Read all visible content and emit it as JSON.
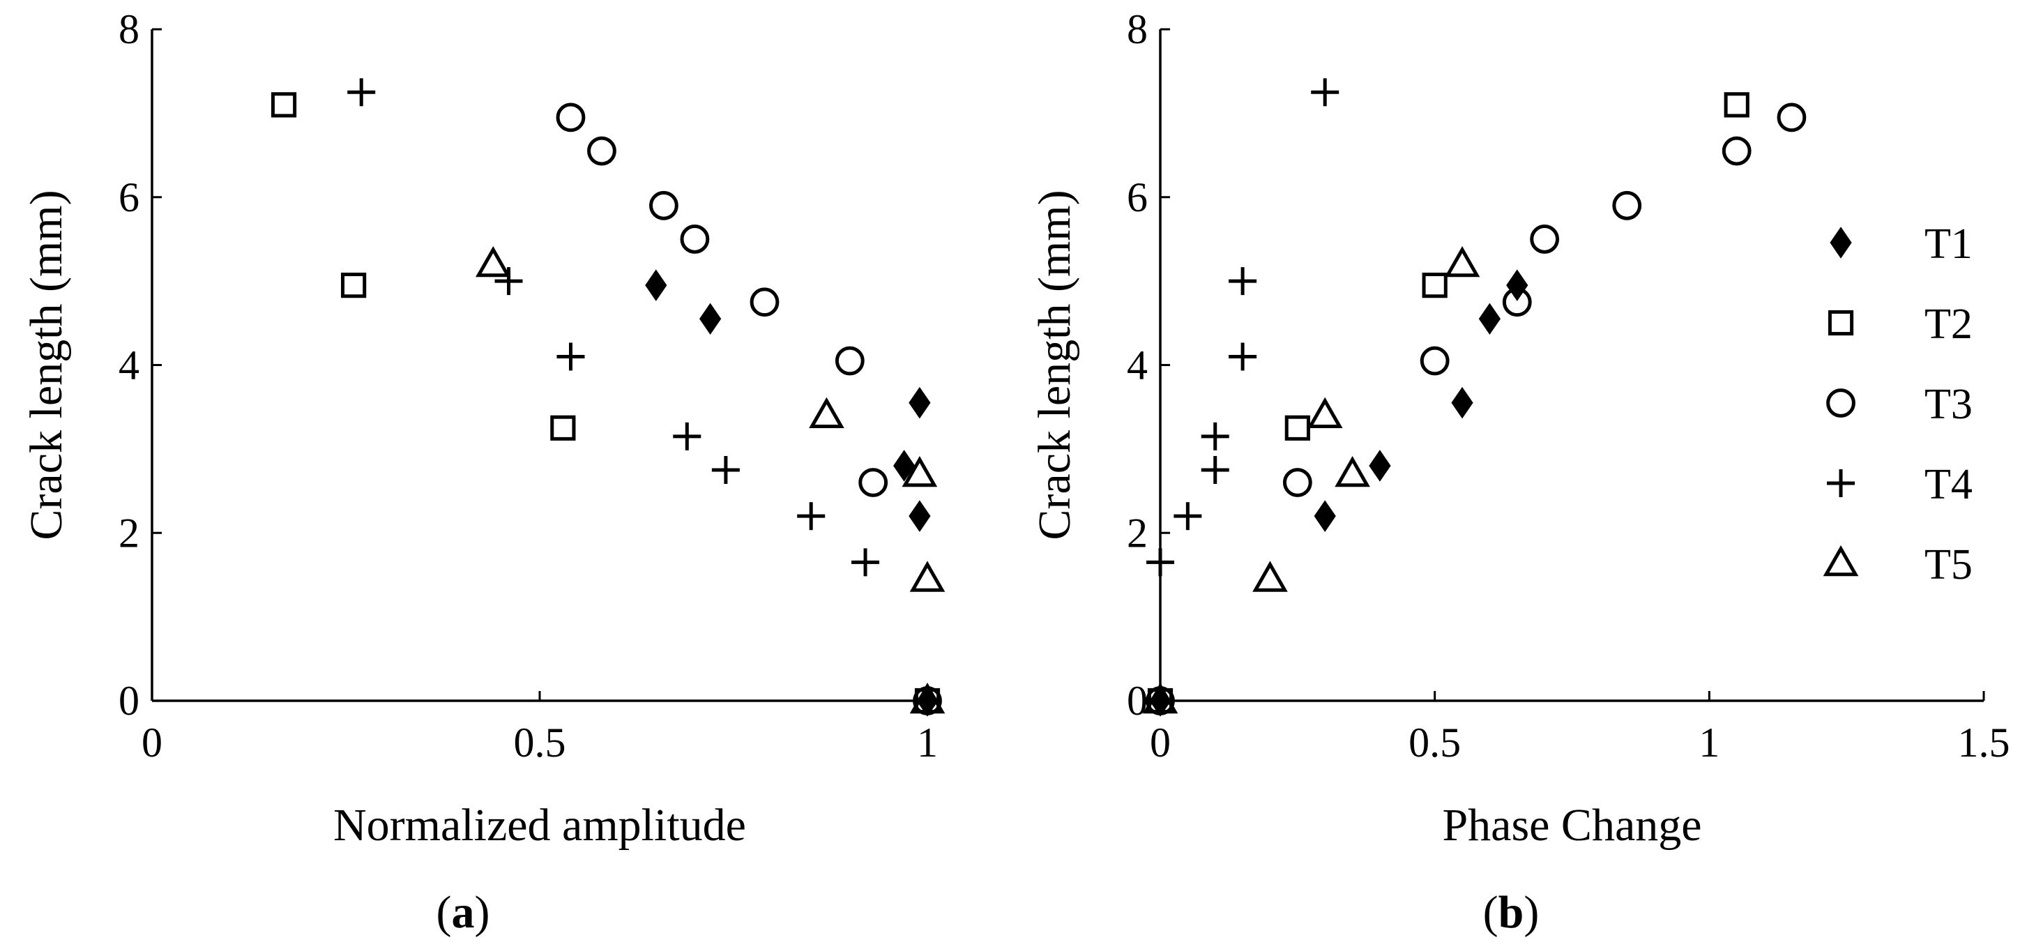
{
  "chart_data": [
    {
      "type": "scatter",
      "panel": "a",
      "xlabel": "Normalized amplitude",
      "ylabel": "Crack length (mm)",
      "xlim": [
        0,
        1
      ],
      "ylim": [
        0,
        8
      ],
      "xticks": [
        "0",
        "0.5",
        "1"
      ],
      "yticks": [
        "0",
        "2",
        "4",
        "6",
        "8"
      ],
      "grid": false,
      "series": [
        {
          "name": "T1",
          "marker": "diamond-filled",
          "x": [
            1.0,
            0.99,
            0.97,
            0.99,
            0.72,
            0.65
          ],
          "y": [
            0,
            2.2,
            2.8,
            3.55,
            4.55,
            4.95
          ]
        },
        {
          "name": "T2",
          "marker": "square-open",
          "x": [
            1.0,
            0.53,
            0.26,
            0.17
          ],
          "y": [
            0,
            3.25,
            4.95,
            7.1
          ]
        },
        {
          "name": "T3",
          "marker": "circle-open",
          "x": [
            1.0,
            0.93,
            0.9,
            0.79,
            0.7,
            0.66,
            0.58,
            0.54
          ],
          "y": [
            0,
            2.6,
            4.05,
            4.75,
            5.5,
            5.9,
            6.55,
            6.95
          ]
        },
        {
          "name": "T4",
          "marker": "plus",
          "x": [
            1.0,
            0.92,
            0.85,
            0.74,
            0.69,
            0.54,
            0.46,
            0.27
          ],
          "y": [
            0,
            1.65,
            2.2,
            2.75,
            3.15,
            4.1,
            5.0,
            7.25
          ]
        },
        {
          "name": "T5",
          "marker": "triangle-open",
          "x": [
            1.0,
            1.0,
            0.99,
            0.87,
            0.44
          ],
          "y": [
            0,
            1.45,
            2.7,
            3.4,
            5.2
          ]
        }
      ]
    },
    {
      "type": "scatter",
      "panel": "b",
      "xlabel": "Phase Change",
      "ylabel": "Crack length (mm)",
      "xlim": [
        0,
        1.5
      ],
      "ylim": [
        0,
        8
      ],
      "xticks": [
        "0",
        "0.5",
        "1",
        "1.5"
      ],
      "yticks": [
        "0",
        "2",
        "4",
        "6",
        "8"
      ],
      "grid": false,
      "legend_position": "right",
      "series": [
        {
          "name": "T1",
          "marker": "diamond-filled",
          "x": [
            0.0,
            0.3,
            0.4,
            0.55,
            0.6,
            0.65
          ],
          "y": [
            0,
            2.2,
            2.8,
            3.55,
            4.55,
            4.95
          ]
        },
        {
          "name": "T2",
          "marker": "square-open",
          "x": [
            0.0,
            0.25,
            0.5,
            1.05
          ],
          "y": [
            0,
            3.25,
            4.95,
            7.1
          ]
        },
        {
          "name": "T3",
          "marker": "circle-open",
          "x": [
            0.0,
            0.25,
            0.5,
            0.65,
            0.7,
            0.85,
            1.05,
            1.15
          ],
          "y": [
            0,
            2.6,
            4.05,
            4.75,
            5.5,
            5.9,
            6.55,
            6.95
          ]
        },
        {
          "name": "T4",
          "marker": "plus",
          "x": [
            0.0,
            0.0,
            0.05,
            0.1,
            0.1,
            0.15,
            0.15,
            0.3
          ],
          "y": [
            0,
            1.65,
            2.2,
            2.75,
            3.15,
            4.1,
            5.0,
            7.25
          ]
        },
        {
          "name": "T5",
          "marker": "triangle-open",
          "x": [
            0.0,
            0.2,
            0.35,
            0.3,
            0.55
          ],
          "y": [
            0,
            1.45,
            2.7,
            3.4,
            5.2
          ]
        }
      ]
    }
  ],
  "legend": [
    "T1",
    "T2",
    "T3",
    "T4",
    "T5"
  ],
  "captions": {
    "a": {
      "open": "(",
      "letter": "a",
      "close": ")"
    },
    "b": {
      "open": "(",
      "letter": "b",
      "close": ")"
    }
  }
}
